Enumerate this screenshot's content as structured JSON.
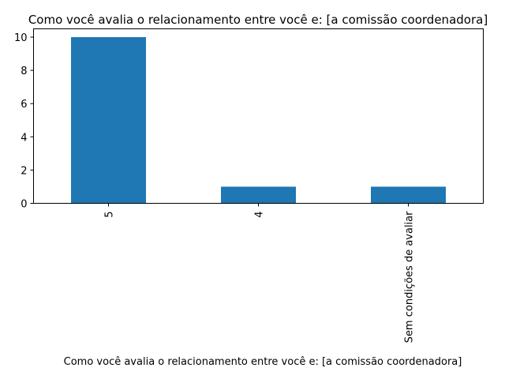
{
  "chart_data": {
    "type": "bar",
    "title": "Como você avalia o relacionamento entre você e: [a comissão coordenadora]",
    "xlabel": "Como você avalia o relacionamento entre você e: [a comissão coordenadora]",
    "ylabel": "",
    "categories": [
      "5",
      "4",
      "Sem condições de avaliar"
    ],
    "values": [
      10,
      1,
      1
    ],
    "ylim": [
      0,
      10.5
    ],
    "yticks": [
      0,
      2,
      4,
      6,
      8,
      10
    ],
    "grid": false,
    "legend": "none",
    "color": "#1f77b4"
  }
}
